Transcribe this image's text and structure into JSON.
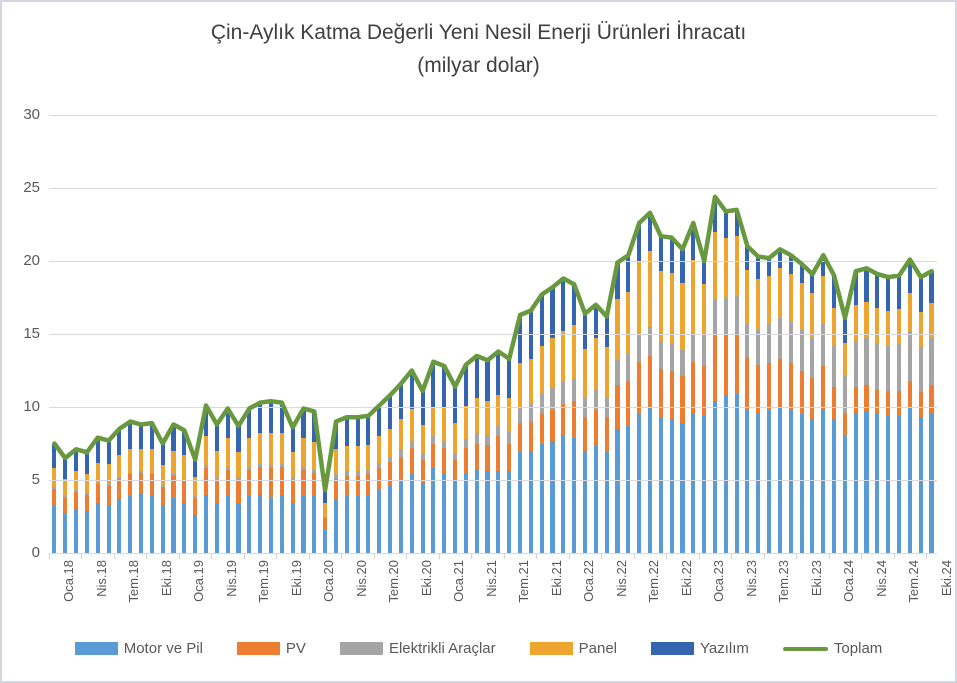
{
  "chart": {
    "title_line1": "Çin-Aylık Katma Değerli Yeni Nesil Enerji Ürünleri İhracatı",
    "title_line2": "(milyar dolar)"
  },
  "chart_data": {
    "type": "bar",
    "stacked": true,
    "combo": "stacked-bar-with-line",
    "title": "Çin-Aylık Katma Değerli Yeni Nesil Enerji Ürünleri İhracatı (milyar dolar)",
    "xlabel": "",
    "ylabel": "",
    "ylim": [
      0,
      30
    ],
    "y_ticks": [
      0,
      5,
      10,
      15,
      20,
      25,
      30
    ],
    "x_tick_step": 3,
    "grid": true,
    "legend_position": "bottom",
    "categories": [
      "Oca.18",
      "Şub.18",
      "Mar.18",
      "Nis.18",
      "May.18",
      "Haz.18",
      "Tem.18",
      "Ağu.18",
      "Eyl.18",
      "Eki.18",
      "Kas.18",
      "Ara.18",
      "Oca.19",
      "Şub.19",
      "Mar.19",
      "Nis.19",
      "May.19",
      "Haz.19",
      "Tem.19",
      "Ağu.19",
      "Eyl.19",
      "Eki.19",
      "Kas.19",
      "Ara.19",
      "Oca.20",
      "Şub.20",
      "Mar.20",
      "Nis.20",
      "May.20",
      "Haz.20",
      "Tem.20",
      "Ağu.20",
      "Eyl.20",
      "Eki.20",
      "Kas.20",
      "Ara.20",
      "Oca.21",
      "Şub.21",
      "Mar.21",
      "Nis.21",
      "May.21",
      "Haz.21",
      "Tem.21",
      "Ağu.21",
      "Eyl.21",
      "Eki.21",
      "Kas.21",
      "Ara.21",
      "Oca.22",
      "Şub.22",
      "Mar.22",
      "Nis.22",
      "May.22",
      "Haz.22",
      "Tem.22",
      "Ağu.22",
      "Eyl.22",
      "Eki.22",
      "Kas.22",
      "Ara.22",
      "Oca.23",
      "Şub.23",
      "Mar.23",
      "Nis.23",
      "May.23",
      "Haz.23",
      "Tem.23",
      "Ağu.23",
      "Eyl.23",
      "Eki.23",
      "Kas.23",
      "Ara.23",
      "Oca.24",
      "Şub.24",
      "Mar.24",
      "Nis.24",
      "May.24",
      "Haz.24",
      "Tem.24",
      "Ağu.24",
      "Eyl.24",
      "Eki.24"
    ],
    "series": [
      {
        "id": "motor-ve-pil",
        "name": "Motor ve Pil",
        "color": "#5b9bd5",
        "values": [
          3.2,
          2.7,
          3.0,
          2.9,
          3.4,
          3.3,
          3.7,
          3.9,
          4.1,
          3.9,
          3.3,
          3.8,
          3.4,
          2.6,
          4.0,
          3.4,
          3.9,
          3.4,
          3.9,
          4.0,
          3.8,
          4.0,
          3.4,
          3.9,
          3.9,
          1.6,
          3.7,
          3.9,
          3.9,
          4.0,
          4.3,
          4.6,
          4.9,
          5.4,
          4.8,
          5.8,
          5.5,
          4.9,
          5.5,
          5.7,
          5.6,
          5.6,
          5.6,
          6.9,
          7.0,
          7.5,
          7.7,
          8.0,
          7.9,
          7.0,
          7.3,
          6.9,
          8.5,
          8.7,
          9.6,
          9.9,
          9.3,
          9.2,
          8.9,
          9.6,
          9.4,
          10.4,
          10.8,
          10.9,
          9.8,
          9.5,
          9.8,
          10.0,
          9.8,
          9.5,
          9.2,
          9.8,
          9.2,
          8.0,
          9.6,
          9.7,
          9.5,
          9.4,
          9.4,
          9.9,
          9.3,
          9.6
        ]
      },
      {
        "id": "pv",
        "name": "PV",
        "color": "#ed7d31",
        "values": [
          1.2,
          1.1,
          1.2,
          1.1,
          1.3,
          1.3,
          1.4,
          1.5,
          1.4,
          1.5,
          1.2,
          1.5,
          1.5,
          1.2,
          1.8,
          1.6,
          1.8,
          1.6,
          1.8,
          1.9,
          2.0,
          1.9,
          1.6,
          1.8,
          1.6,
          0.8,
          1.4,
          1.4,
          1.4,
          1.4,
          1.5,
          1.6,
          1.7,
          1.8,
          1.6,
          1.7,
          1.7,
          1.5,
          1.7,
          1.8,
          1.8,
          2.4,
          1.9,
          2.0,
          2.0,
          2.0,
          2.1,
          2.2,
          2.5,
          2.3,
          2.5,
          2.4,
          3.0,
          3.1,
          3.5,
          3.6,
          3.3,
          3.3,
          3.2,
          3.5,
          3.4,
          4.6,
          4.2,
          4.2,
          3.6,
          3.4,
          3.2,
          3.3,
          3.2,
          3.0,
          2.8,
          3.0,
          2.2,
          1.6,
          1.8,
          1.8,
          1.7,
          1.7,
          1.7,
          1.9,
          1.7,
          1.9
        ]
      },
      {
        "id": "elektrikli-araclar",
        "name": "Elektrikli Araçlar",
        "color": "#a5a5a5",
        "values": [
          0.1,
          0.1,
          0.1,
          0.1,
          0.1,
          0.1,
          0.1,
          0.1,
          0.1,
          0.1,
          0.1,
          0.1,
          0.2,
          0.1,
          0.2,
          0.2,
          0.2,
          0.2,
          0.2,
          0.2,
          0.2,
          0.2,
          0.2,
          0.2,
          0.2,
          0.1,
          0.3,
          0.3,
          0.3,
          0.3,
          0.4,
          0.4,
          0.5,
          0.5,
          0.4,
          0.5,
          0.5,
          0.4,
          0.6,
          0.7,
          0.7,
          0.7,
          0.8,
          1.1,
          1.2,
          1.4,
          1.5,
          1.5,
          1.5,
          1.3,
          1.4,
          1.4,
          1.7,
          1.8,
          1.9,
          2.0,
          1.9,
          1.9,
          1.8,
          2.0,
          2.1,
          2.4,
          2.5,
          2.5,
          2.3,
          2.4,
          2.7,
          2.8,
          2.8,
          2.8,
          2.7,
          2.9,
          2.8,
          2.5,
          3.1,
          3.2,
          3.2,
          3.1,
          3.2,
          3.4,
          3.1,
          3.2
        ]
      },
      {
        "id": "panel",
        "name": "Panel",
        "color": "#eda52f",
        "values": [
          1.3,
          1.2,
          1.3,
          1.3,
          1.4,
          1.4,
          1.5,
          1.6,
          1.5,
          1.6,
          1.4,
          1.6,
          1.6,
          1.3,
          2.0,
          1.8,
          2.0,
          1.7,
          2.0,
          2.1,
          2.2,
          2.1,
          1.7,
          2.0,
          1.9,
          0.9,
          1.7,
          1.7,
          1.7,
          1.7,
          1.8,
          1.9,
          2.1,
          2.2,
          2.0,
          2.0,
          2.2,
          2.1,
          2.3,
          2.4,
          2.3,
          2.1,
          2.3,
          3.0,
          3.1,
          3.3,
          3.4,
          3.5,
          3.7,
          3.4,
          3.5,
          3.4,
          4.2,
          4.3,
          5.0,
          5.2,
          4.8,
          4.8,
          4.6,
          5.0,
          3.5,
          4.6,
          4.1,
          4.1,
          3.7,
          3.5,
          3.3,
          3.4,
          3.3,
          3.2,
          3.1,
          3.3,
          2.6,
          2.3,
          2.5,
          2.5,
          2.4,
          2.4,
          2.4,
          2.6,
          2.4,
          2.4
        ]
      },
      {
        "id": "yazilim",
        "name": "Yazılım",
        "color": "#3565af",
        "values": [
          1.7,
          1.4,
          1.5,
          1.5,
          1.7,
          1.6,
          1.8,
          1.9,
          1.7,
          1.8,
          1.5,
          1.8,
          1.7,
          1.2,
          2.1,
          1.8,
          2.0,
          1.8,
          2.0,
          2.1,
          2.2,
          2.1,
          1.7,
          2.0,
          2.1,
          0.9,
          1.9,
          2.0,
          2.0,
          2.0,
          2.1,
          2.3,
          2.4,
          2.6,
          2.3,
          3.1,
          2.9,
          2.5,
          2.8,
          2.9,
          2.8,
          3.0,
          2.7,
          3.3,
          3.3,
          3.5,
          3.5,
          3.6,
          2.8,
          2.4,
          2.3,
          2.1,
          2.5,
          2.5,
          2.6,
          2.6,
          2.4,
          2.4,
          2.3,
          2.5,
          1.6,
          2.4,
          1.8,
          1.8,
          1.6,
          1.5,
          1.2,
          1.3,
          1.3,
          1.3,
          1.3,
          1.4,
          2.2,
          1.7,
          2.3,
          2.3,
          2.3,
          2.3,
          2.3,
          2.3,
          2.4,
          2.2
        ]
      }
    ],
    "line_series": {
      "id": "toplam",
      "name": "Toplam",
      "color": "#68993f",
      "values": [
        7.5,
        6.5,
        7.1,
        6.9,
        7.9,
        7.7,
        8.5,
        9.0,
        8.8,
        8.9,
        7.5,
        8.8,
        8.4,
        6.4,
        10.1,
        8.8,
        9.9,
        8.7,
        9.9,
        10.3,
        10.4,
        10.3,
        8.6,
        9.9,
        9.7,
        4.3,
        9.0,
        9.3,
        9.3,
        9.4,
        10.1,
        10.8,
        11.6,
        12.5,
        11.1,
        13.1,
        12.8,
        11.4,
        12.9,
        13.5,
        13.2,
        13.8,
        13.3,
        16.3,
        16.6,
        17.7,
        18.2,
        18.8,
        18.4,
        16.4,
        17.0,
        16.2,
        19.9,
        20.4,
        22.6,
        23.3,
        21.7,
        21.6,
        20.8,
        22.6,
        20.0,
        24.4,
        23.4,
        23.5,
        21.0,
        20.3,
        20.2,
        20.8,
        20.4,
        19.8,
        19.1,
        20.4,
        19.0,
        16.1,
        19.3,
        19.5,
        19.1,
        18.9,
        19.0,
        20.1,
        18.9,
        19.3
      ]
    }
  }
}
